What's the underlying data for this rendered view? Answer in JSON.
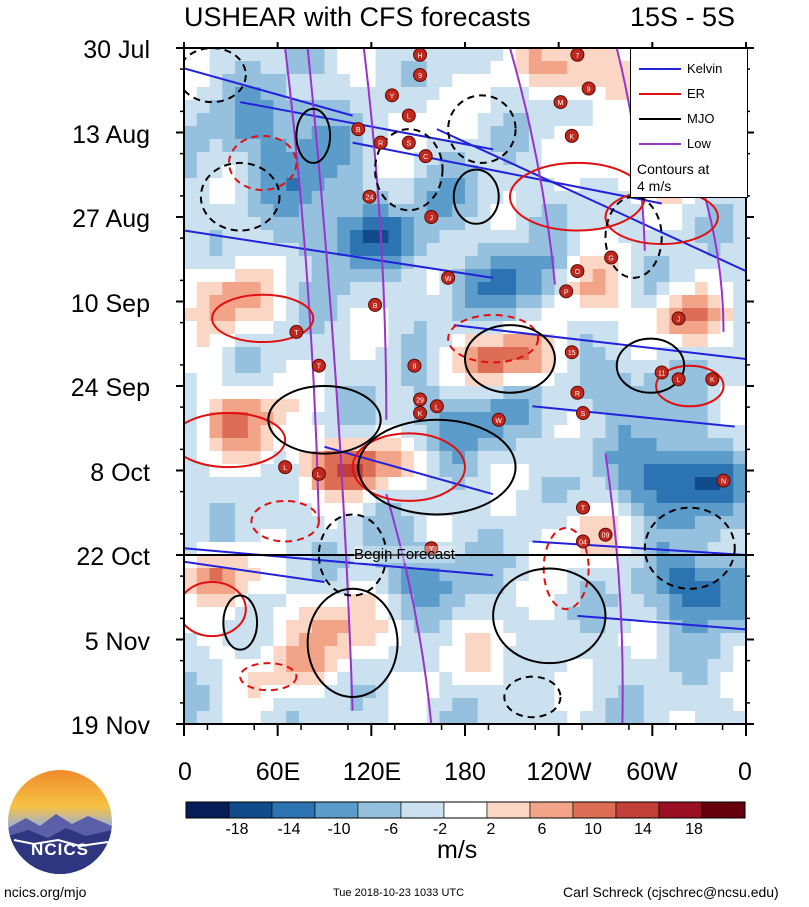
{
  "chart_data": {
    "type": "heatmap",
    "title": "USHEAR with CFS forecasts",
    "region": "15S - 5S",
    "y_tick_labels": [
      "30 Jul",
      "13 Aug",
      "27 Aug",
      "10 Sep",
      "24 Sep",
      "8 Oct",
      "22 Oct",
      "5 Nov",
      "19 Nov"
    ],
    "x_tick_labels": [
      "0",
      "60E",
      "120E",
      "180",
      "120W",
      "60W",
      "0"
    ],
    "x_range_degE": [
      0,
      360
    ],
    "y_range": [
      "30 Jul",
      "19 Nov"
    ],
    "forecast_start": "22 Oct",
    "forecast_label": "Begin Forecast",
    "legend": {
      "position": "top-right",
      "entries": [
        {
          "name": "Kelvin",
          "color": "#2222dd"
        },
        {
          "name": "ER",
          "color": "#e01010"
        },
        {
          "name": "MJO",
          "color": "#000000"
        },
        {
          "name": "Low",
          "color": "#9933cc"
        }
      ],
      "note_line1": "Contours at",
      "note_line2": "4 m/s"
    },
    "colorbar": {
      "ticks": [
        "-18",
        "-14",
        "-10",
        "-6",
        "-2",
        "2",
        "6",
        "10",
        "14",
        "18"
      ],
      "colors": [
        "#081d58",
        "#114b8c",
        "#2c73b2",
        "#5b9ccb",
        "#95c1de",
        "#cbe1ef",
        "#ffffff",
        "#fbd6c4",
        "#f2a488",
        "#de6d55",
        "#c13f37",
        "#9b0f22",
        "#67000d"
      ],
      "units": "m/s"
    },
    "storm_markers": [
      "H",
      "9",
      "Y",
      "L",
      "B",
      "R",
      "S",
      "C",
      "24",
      "J",
      "W",
      "B",
      "T",
      "9",
      "T",
      "29",
      "L",
      "K",
      "W",
      "L",
      "L",
      "7",
      "9",
      "M",
      "K",
      "G",
      "P",
      "J",
      "15",
      "R",
      "11",
      "L",
      "K",
      "S",
      "N",
      "T",
      "04",
      "09",
      "Y",
      "O"
    ]
  },
  "branding": {
    "logo_text": "NCICS",
    "website": "ncics.org/mjo",
    "timestamp": "Tue 2018-10-23 1033 UTC",
    "author": "Carl Schreck (cjschrec@ncsu.edu)"
  }
}
